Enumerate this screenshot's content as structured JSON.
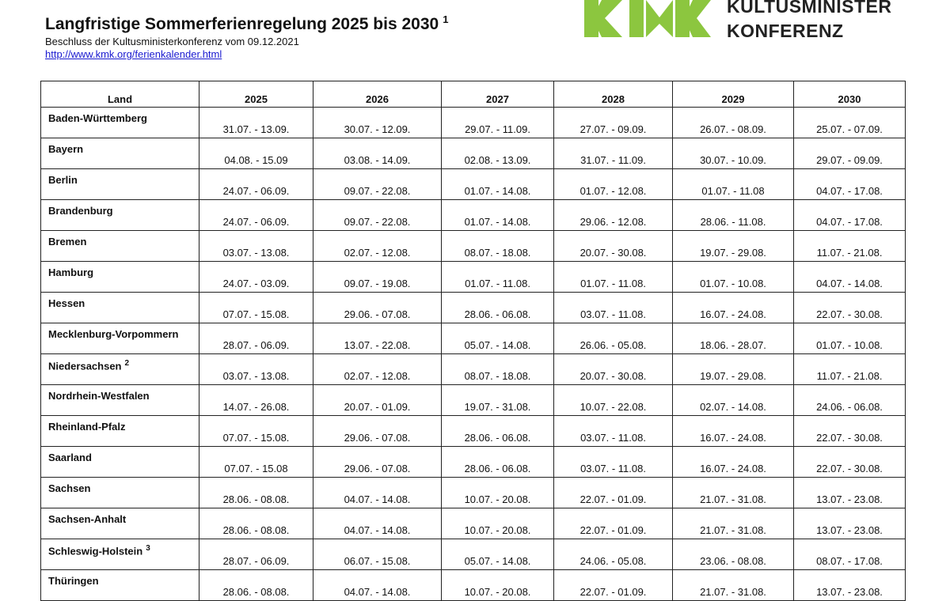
{
  "header": {
    "title": "Langfristige Sommerferienregelung 2025 bis 2030",
    "title_note": "1",
    "subtitle": "Beschluss der Kultusministerkonferenz vom 09.12.2021",
    "link": "http://www.kmk.org/ferienkalender.html"
  },
  "logo": {
    "line1": "KULTUSMINISTER",
    "line2": "KONFERENZ"
  },
  "table": {
    "columns": [
      "Land",
      "2025",
      "2026",
      "2027",
      "2028",
      "2029",
      "2030"
    ],
    "rows": [
      {
        "land": "Baden-Württemberg",
        "dates": [
          "31.07. - 13.09.",
          "30.07. - 12.09.",
          "29.07. - 11.09.",
          "27.07. - 09.09.",
          "26.07. - 08.09.",
          "25.07. - 07.09."
        ]
      },
      {
        "land": "Bayern",
        "dates": [
          "04.08. - 15.09",
          "03.08. - 14.09.",
          "02.08. - 13.09.",
          "31.07. - 11.09.",
          "30.07. - 10.09.",
          "29.07. - 09.09."
        ]
      },
      {
        "land": "Berlin",
        "dates": [
          "24.07. - 06.09.",
          "09.07. - 22.08.",
          "01.07. - 14.08.",
          "01.07. - 12.08.",
          "01.07. - 11.08",
          "04.07. - 17.08."
        ]
      },
      {
        "land": "Brandenburg",
        "dates": [
          "24.07. - 06.09.",
          "09.07. - 22.08.",
          "01.07. - 14.08.",
          "29.06. - 12.08.",
          "28.06. - 11.08.",
          "04.07. - 17.08."
        ]
      },
      {
        "land": "Bremen",
        "dates": [
          "03.07. - 13.08.",
          "02.07. - 12.08.",
          "08.07. - 18.08.",
          "20.07. - 30.08.",
          "19.07. - 29.08.",
          "11.07. - 21.08."
        ]
      },
      {
        "land": "Hamburg",
        "dates": [
          "24.07. - 03.09.",
          "09.07. - 19.08.",
          "01.07. - 11.08.",
          "01.07. - 11.08.",
          "01.07. - 10.08.",
          "04.07. - 14.08."
        ]
      },
      {
        "land": "Hessen",
        "dates": [
          "07.07. - 15.08.",
          "29.06. - 07.08.",
          "28.06. - 06.08.",
          "03.07. - 11.08.",
          "16.07. - 24.08.",
          "22.07. - 30.08."
        ]
      },
      {
        "land": "Mecklenburg-Vorpommern",
        "dates": [
          "28.07. - 06.09.",
          "13.07. - 22.08.",
          "05.07. - 14.08.",
          "26.06. - 05.08.",
          "18.06. - 28.07.",
          "01.07. - 10.08."
        ]
      },
      {
        "land": "Niedersachsen",
        "note": "2",
        "dates": [
          "03.07. - 13.08.",
          "02.07. - 12.08.",
          "08.07. - 18.08.",
          "20.07. - 30.08.",
          "19.07. - 29.08.",
          "11.07. - 21.08."
        ]
      },
      {
        "land": "Nordrhein-Westfalen",
        "dates": [
          "14.07. - 26.08.",
          "20.07. - 01.09.",
          "19.07. - 31.08.",
          "10.07. - 22.08.",
          "02.07. - 14.08.",
          "24.06. - 06.08."
        ]
      },
      {
        "land": "Rheinland-Pfalz",
        "dates": [
          "07.07. - 15.08.",
          "29.06. - 07.08.",
          "28.06. - 06.08.",
          "03.07. - 11.08.",
          "16.07. - 24.08.",
          "22.07. - 30.08."
        ]
      },
      {
        "land": "Saarland",
        "dates": [
          "07.07. - 15.08",
          "29.06. - 07.08.",
          "28.06. - 06.08.",
          "03.07. - 11.08.",
          "16.07. - 24.08.",
          "22.07. - 30.08."
        ]
      },
      {
        "land": "Sachsen",
        "dates": [
          "28.06. - 08.08.",
          "04.07. - 14.08.",
          "10.07. - 20.08.",
          "22.07. - 01.09.",
          "21.07. - 31.08.",
          "13.07. - 23.08."
        ]
      },
      {
        "land": "Sachsen-Anhalt",
        "dates": [
          "28.06. - 08.08.",
          "04.07. - 14.08.",
          "10.07. - 20.08.",
          "22.07. - 01.09.",
          "21.07. - 31.08.",
          "13.07. - 23.08."
        ]
      },
      {
        "land": "Schleswig-Holstein",
        "note": "3",
        "dates": [
          "28.07. - 06.09.",
          "06.07. - 15.08.",
          "05.07. - 14.08.",
          "24.06. - 05.08.",
          "23.06. - 08.08.",
          "08.07. - 17.08."
        ]
      },
      {
        "land": "Thüringen",
        "dates": [
          "28.06. - 08.08.",
          "04.07. - 14.08.",
          "10.07. - 20.08.",
          "22.07. - 01.09.",
          "21.07. - 31.08.",
          "13.07. - 23.08."
        ]
      }
    ]
  }
}
